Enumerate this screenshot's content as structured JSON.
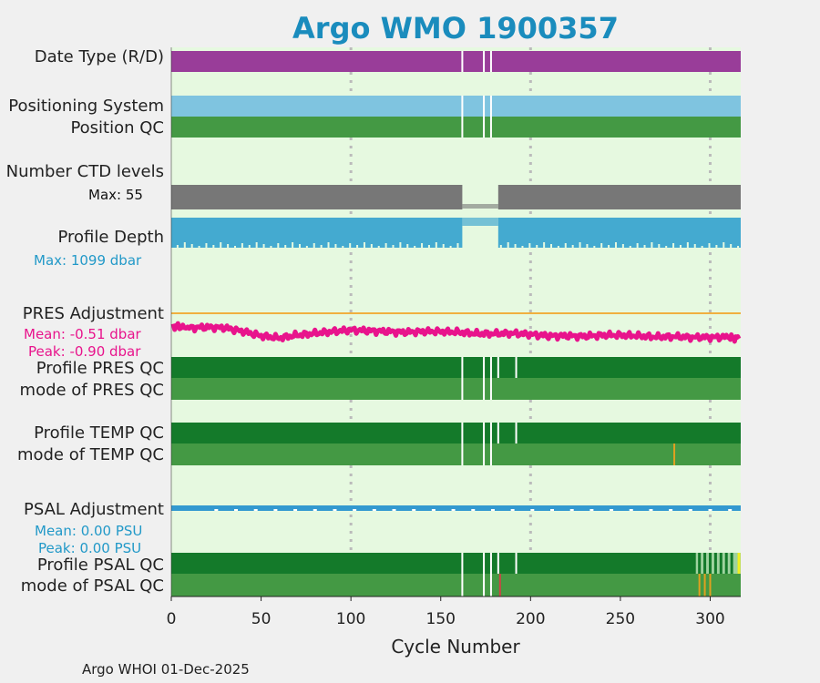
{
  "title": "Argo WMO 1900357",
  "footer": "Argo WHOI 01-Dec-2025",
  "colors": {
    "title": "#1a8cbd",
    "background": "#e6f9e0",
    "date_type": "#993d99",
    "positioning": "#7fc4e0",
    "qc_good": "#449944",
    "qc_dark": "#147a2a",
    "ctd": "#777777",
    "depth": "#44aad0",
    "pres_adj": "#e8148c",
    "psal_adj": "#3399d0",
    "flag_orange": "#e0a020",
    "flag_red": "#cc4444",
    "flag_yellow": "#f0f020"
  },
  "labels": {
    "date_type": "Date Type (R/D)",
    "positioning": "Positioning System",
    "position_qc": "Position QC",
    "ctd_levels": "Number CTD levels",
    "ctd_max": "Max: 55",
    "profile_depth": "Profile Depth",
    "depth_max": "Max: 1099 dbar",
    "pres_adj": "PRES Adjustment",
    "pres_mean": "Mean: -0.51 dbar",
    "pres_peak": "Peak: -0.90 dbar",
    "profile_pres_qc": "Profile PRES QC",
    "mode_pres_qc": "mode of PRES QC",
    "profile_temp_qc": "Profile TEMP QC",
    "mode_temp_qc": "mode of TEMP QC",
    "psal_adj": "PSAL Adjustment",
    "psal_mean": "Mean: 0.00 PSU",
    "psal_peak": "Peak: 0.00 PSU",
    "profile_psal_qc": "Profile PSAL QC",
    "mode_psal_qc": "mode of PSAL QC"
  },
  "chart_data": {
    "type": "bar",
    "title": "Argo WMO 1900357",
    "xlabel": "Cycle Number",
    "xlim": [
      0,
      317
    ],
    "xticks": [
      0,
      50,
      100,
      150,
      200,
      250,
      300
    ],
    "grid": "vertical dotted at 100, 200, 300",
    "missing_cycles": [
      162,
      174,
      178
    ],
    "ctd_levels": {
      "max": 55,
      "gap_cycles": [
        162,
        182
      ]
    },
    "profile_depth_dbar": {
      "max": 1099,
      "gap_cycles": [
        162,
        182
      ]
    },
    "pres_adjustment_dbar": {
      "mean": -0.51,
      "peak": -0.9,
      "x": [
        1,
        10,
        20,
        30,
        40,
        50,
        60,
        70,
        80,
        90,
        100,
        110,
        120,
        130,
        140,
        150,
        160,
        170,
        180,
        190,
        200,
        210,
        220,
        230,
        240,
        250,
        260,
        270,
        280,
        290,
        300,
        310,
        316
      ],
      "values": [
        -0.35,
        -0.4,
        -0.38,
        -0.4,
        -0.5,
        -0.62,
        -0.68,
        -0.6,
        -0.55,
        -0.5,
        -0.46,
        -0.48,
        -0.5,
        -0.52,
        -0.5,
        -0.5,
        -0.52,
        -0.56,
        -0.56,
        -0.55,
        -0.58,
        -0.62,
        -0.62,
        -0.63,
        -0.6,
        -0.6,
        -0.62,
        -0.65,
        -0.64,
        -0.66,
        -0.66,
        -0.65,
        -0.7
      ]
    },
    "psal_adjustment_psu": {
      "mean": 0.0,
      "peak": 0.0
    },
    "qc_flags": {
      "profile_pres_qc": "A (all good)",
      "profile_temp_qc": "A (all good)",
      "mode_temp_qc_flag_cycles": [
        280
      ],
      "profile_psal_qc_degraded_cycles": [
        294,
        297,
        300,
        303,
        306,
        309,
        312,
        316
      ],
      "mode_psal_qc_flag_cycles": [
        183,
        294,
        297,
        300
      ]
    }
  }
}
